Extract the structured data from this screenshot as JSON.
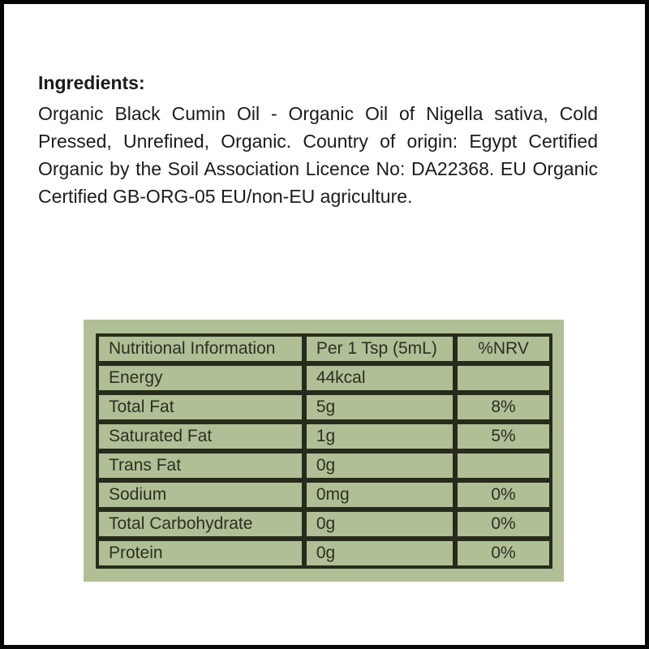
{
  "ingredients": {
    "heading": "Ingredients:",
    "body": "Organic Black Cumin Oil - Organic Oil of Nigella sativa, Cold Pressed, Unrefined, Organic. Country of origin: Egypt Certified Organic by the Soil Association Licence No: DA22368. EU Organic Certified GB-ORG-05 EU/non-EU agriculture."
  },
  "nutrition_table": {
    "headers": [
      "Nutritional Information",
      "Per 1 Tsp (5mL)",
      "%NRV"
    ],
    "rows": [
      {
        "label": "Energy",
        "value": "44kcal",
        "nrv": ""
      },
      {
        "label": "Total Fat",
        "value": "5g",
        "nrv": "8%"
      },
      {
        "label": "Saturated Fat",
        "value": "1g",
        "nrv": "5%"
      },
      {
        "label": "Trans Fat",
        "value": "0g",
        "nrv": ""
      },
      {
        "label": "Sodium",
        "value": "0mg",
        "nrv": "0%"
      },
      {
        "label": "Total Carbohydrate",
        "value": "0g",
        "nrv": "0%"
      },
      {
        "label": "Protein",
        "value": "0g",
        "nrv": "0%"
      }
    ],
    "colors": {
      "panel_background": "#b0bf96",
      "grid_line": "#272b1b",
      "table_text": "#2b3020",
      "frame": "#060606"
    }
  }
}
